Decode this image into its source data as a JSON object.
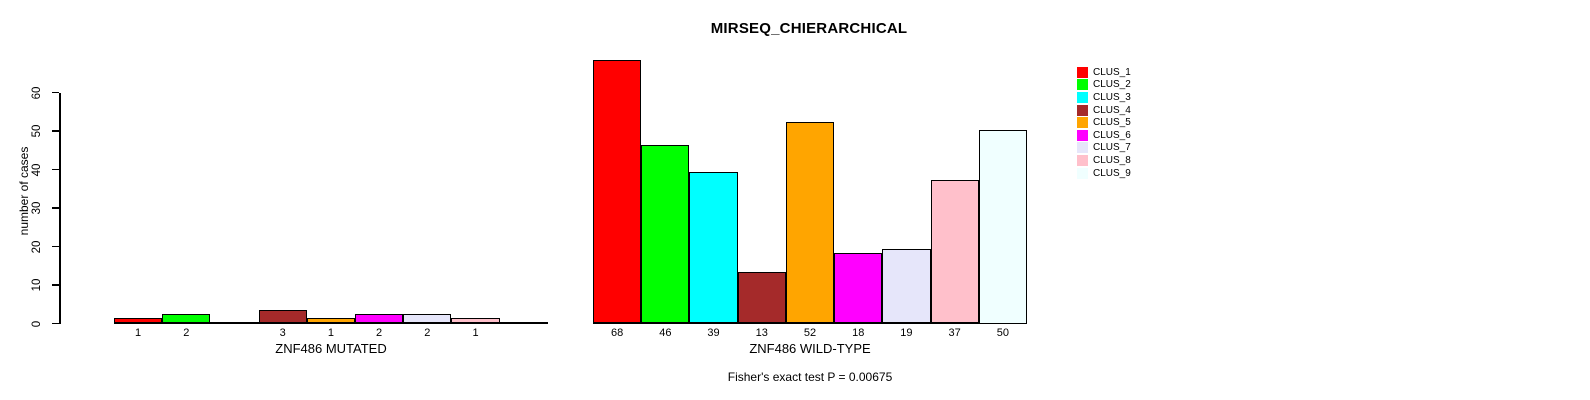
{
  "chart_data": {
    "type": "bar",
    "title": "MIRSEQ_CHIERARCHICAL",
    "ylabel": "number of cases",
    "categories": [
      "ZNF486 MUTATED",
      "ZNF486 WILD-TYPE"
    ],
    "annotation": "Fisher's exact test P = 0.00675",
    "ylim": [
      0,
      60
    ],
    "y_ticks": [
      0,
      10,
      20,
      30,
      40,
      50,
      60
    ],
    "grid": false,
    "legend_position": "right",
    "series": [
      {
        "name": "CLUS_1",
        "color": "#ff0000",
        "values": [
          1,
          68
        ]
      },
      {
        "name": "CLUS_2",
        "color": "#00ff00",
        "values": [
          2,
          46
        ]
      },
      {
        "name": "CLUS_3",
        "color": "#00ffff",
        "values": [
          0,
          39
        ]
      },
      {
        "name": "CLUS_4",
        "color": "#a52a2a",
        "values": [
          3,
          13
        ]
      },
      {
        "name": "CLUS_5",
        "color": "#ffa500",
        "values": [
          1,
          52
        ]
      },
      {
        "name": "CLUS_6",
        "color": "#ff00ff",
        "values": [
          2,
          18
        ]
      },
      {
        "name": "CLUS_7",
        "color": "#e6e6fa",
        "values": [
          2,
          19
        ]
      },
      {
        "name": "CLUS_8",
        "color": "#ffc0cb",
        "values": [
          1,
          37
        ]
      },
      {
        "name": "CLUS_9",
        "color": "#f0ffff",
        "values": [
          0,
          50
        ]
      }
    ]
  }
}
